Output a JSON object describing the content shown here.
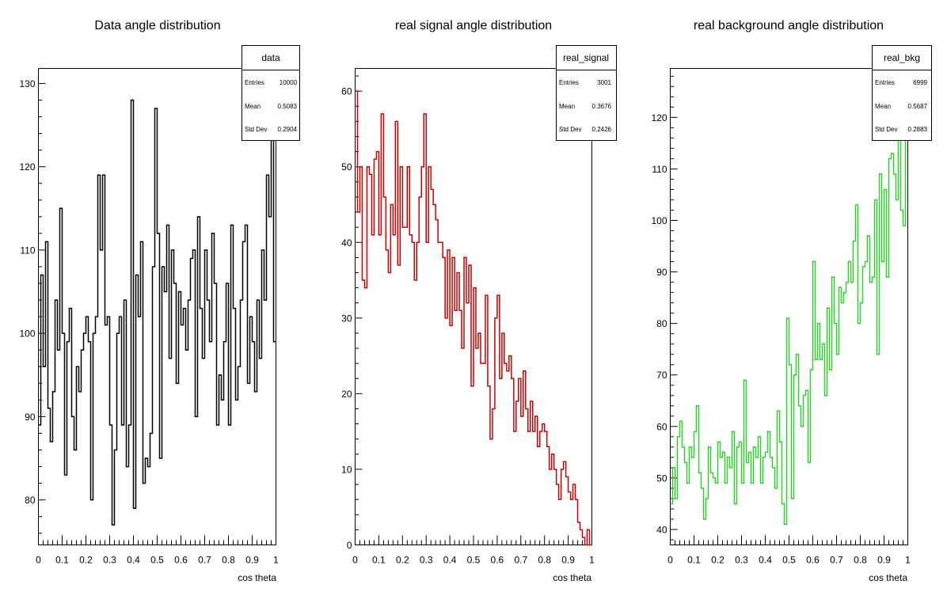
{
  "chart_data": [
    {
      "type": "histogram",
      "title": "Data angle distribution",
      "xlabel": "cos theta",
      "ylabel": "",
      "xlim": [
        0,
        1
      ],
      "ylim": [
        74.6,
        131.8
      ],
      "xticks": [
        "0",
        "0.1",
        "0.2",
        "0.3",
        "0.4",
        "0.5",
        "0.6",
        "0.7",
        "0.8",
        "0.9",
        "1"
      ],
      "yticks": [
        "80",
        "90",
        "100",
        "110",
        "120",
        "130"
      ],
      "line_color": "#000000",
      "stats": {
        "name": "data",
        "entries": "10000",
        "mean": "0.5083",
        "std_dev": "0.2904"
      },
      "bins": 100,
      "values": [
        89,
        107,
        96,
        111,
        91,
        87,
        93,
        104,
        98,
        115,
        100,
        83,
        99,
        103,
        90,
        86,
        96,
        93,
        98,
        100,
        102,
        99,
        80,
        100,
        102,
        119,
        110,
        119,
        101,
        102,
        89,
        77,
        86,
        100,
        102,
        89,
        104,
        84,
        89,
        128,
        79,
        107,
        102,
        111,
        82,
        85,
        84,
        88,
        108,
        127,
        112,
        85,
        108,
        105,
        113,
        97,
        110,
        106,
        94,
        105,
        101,
        103,
        98,
        104,
        109,
        110,
        90,
        114,
        103,
        97,
        110,
        104,
        99,
        112,
        106,
        89,
        95,
        92,
        99,
        106,
        89,
        113,
        103,
        92,
        96,
        104,
        111,
        113,
        94,
        102,
        99,
        93,
        104,
        97,
        110,
        104,
        119,
        114,
        126,
        99
      ]
    },
    {
      "type": "histogram",
      "title": "real signal angle distribution",
      "xlabel": "cos theta",
      "ylabel": "",
      "xlim": [
        0,
        1
      ],
      "ylim": [
        0,
        63
      ],
      "xticks": [
        "0",
        "0.1",
        "0.2",
        "0.3",
        "0.4",
        "0.5",
        "0.6",
        "0.7",
        "0.8",
        "0.9",
        "1"
      ],
      "yticks": [
        "0",
        "10",
        "20",
        "30",
        "40",
        "50",
        "60"
      ],
      "line_color": "#cc0000",
      "stats": {
        "name": "real_signal",
        "entries": "3001",
        "mean": "0.3676",
        "std_dev": "0.2426"
      },
      "bins": 100,
      "values": [
        60,
        44,
        50,
        35,
        34,
        50,
        49,
        41,
        51,
        52,
        41,
        57,
        46,
        39,
        36,
        45,
        41,
        56,
        37,
        50,
        42,
        42,
        50,
        41,
        40,
        35,
        40,
        46,
        50,
        57,
        40,
        50,
        47,
        45,
        43,
        40,
        40,
        38,
        30,
        39,
        29,
        38,
        31,
        36,
        31,
        26,
        38,
        32,
        37,
        21,
        34,
        26,
        28,
        24,
        24,
        33,
        21,
        14,
        18,
        30,
        33,
        22,
        28,
        24,
        23,
        25,
        22,
        15,
        19,
        22,
        17,
        23,
        18,
        15,
        19,
        15,
        17,
        13,
        15,
        16,
        15,
        13,
        10,
        12,
        10,
        8,
        6,
        10,
        11,
        9,
        7,
        6,
        8,
        6,
        3,
        2,
        1,
        0,
        2,
        0
      ]
    },
    {
      "type": "histogram",
      "title": "real background angle distribution",
      "xlabel": "cos theta",
      "ylabel": "",
      "xlim": [
        0,
        1
      ],
      "ylim": [
        37,
        129.5
      ],
      "xticks": [
        "0",
        "0.1",
        "0.2",
        "0.3",
        "0.4",
        "0.5",
        "0.6",
        "0.7",
        "0.8",
        "0.9",
        "1"
      ],
      "yticks": [
        "40",
        "50",
        "60",
        "70",
        "80",
        "90",
        "100",
        "110",
        "120"
      ],
      "line_color": "#33cc33",
      "stats": {
        "name": "real_bkg",
        "entries": "6999",
        "mean": "0.5687",
        "std_dev": "0.2883"
      },
      "bins": 100,
      "values": [
        45,
        52,
        46,
        58,
        61,
        56,
        53,
        49,
        56,
        54,
        59,
        64,
        51,
        48,
        42,
        46,
        56,
        51,
        50,
        49,
        57,
        54,
        55,
        49,
        54,
        52,
        59,
        45,
        56,
        57,
        49,
        69,
        53,
        55,
        49,
        56,
        54,
        58,
        49,
        54,
        55,
        59,
        54,
        52,
        48,
        63,
        57,
        45,
        41,
        81,
        72,
        46,
        70,
        74,
        64,
        60,
        66,
        67,
        53,
        71,
        92,
        73,
        80,
        73,
        76,
        66,
        83,
        71,
        89,
        80,
        74,
        87,
        84,
        86,
        88,
        92,
        88,
        96,
        103,
        80,
        84,
        91,
        92,
        97,
        88,
        89,
        104,
        74,
        109,
        92,
        106,
        89,
        112,
        113,
        109,
        104,
        122,
        102,
        99,
        122
      ]
    }
  ]
}
